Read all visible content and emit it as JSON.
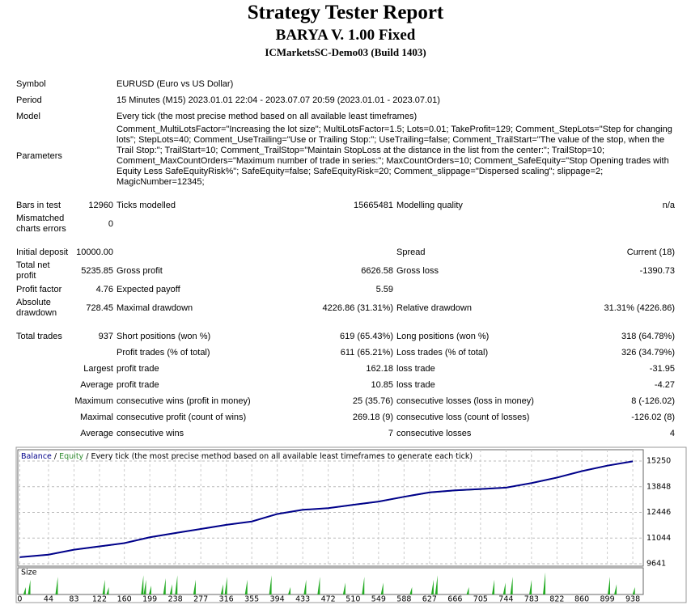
{
  "header": {
    "title": "Strategy Tester Report",
    "subtitle": "BARYA V. 1.00 Fixed",
    "server": "ICMarketsSC-Demo03 (Build 1403)"
  },
  "report": {
    "sections": [
      [
        {
          "label": "Symbol",
          "text": "EURUSD (Euro vs US Dollar)"
        },
        {
          "label": "Period",
          "text": "15 Minutes (M15) 2023.01.01 22:04 - 2023.07.07 20:59 (2023.01.01 - 2023.07.01)"
        },
        {
          "label": "Model",
          "text": "Every tick (the most precise method based on all available least timeframes)"
        },
        {
          "label": "Parameters",
          "text": "Comment_MultiLotsFactor=\"Increasing the lot size\"; MultiLotsFactor=1.5; Lots=0.01; TakeProfit=129; Comment_StepLots=\"Step for changing lots\"; StepLots=40; Comment_UseTrailing=\"Use or Trailing Stop:\"; UseTrailing=false; Comment_TrailStart=\"The value of the stop, when the Trail Stop:\"; TrailStart=10; Comment_TrailStop=\"Maintain StopLoss at the distance in the list from the center:\"; TrailStop=10; Comment_MaxCountOrders=\"Maximum number of trade in series:\"; MaxCountOrders=10; Comment_SafeEquity=\"Stop Opening trades with Equity Less SafeEquityRisk%\"; SafeEquity=false; SafeEquityRisk=20; Comment_slippage=\"Dispersed scaling\"; slippage=2; MagicNumber=12345;"
        }
      ],
      [
        {
          "label": "Bars in test",
          "value": "12960",
          "label2": "Ticks modelled",
          "value2": "15665481",
          "label3": "Modelling quality",
          "value3": "n/a"
        },
        {
          "label": "Mismatched charts errors",
          "value": "0"
        }
      ],
      [
        {
          "label": "Initial deposit",
          "value": "10000.00",
          "label3": "Spread",
          "value3": "Current (18)"
        },
        {
          "label": "Total net profit",
          "value": "5235.85",
          "label2": "Gross profit",
          "value2": "6626.58",
          "label3": "Gross loss",
          "value3": "-1390.73"
        },
        {
          "label": "Profit factor",
          "value": "4.76",
          "label2": "Expected payoff",
          "value2": "5.59"
        },
        {
          "label": "Absolute drawdown",
          "value": "728.45",
          "label2": "Maximal drawdown",
          "value2": "4226.86 (31.31%)",
          "label3": "Relative drawdown",
          "value3": "31.31% (4226.86)"
        }
      ],
      [
        {
          "label": "Total trades",
          "value": "937",
          "label2": "Short positions (won %)",
          "value2": "619 (65.43%)",
          "label3": "Long positions (won %)",
          "value3": "318 (64.78%)"
        },
        {
          "label2": "Profit trades (% of total)",
          "value2": "611 (65.21%)",
          "label3": "Loss trades (% of total)",
          "value3": "326 (34.79%)"
        },
        {
          "value": "Largest",
          "label2": "profit trade",
          "value2": "162.18",
          "label3": "loss trade",
          "value3": "-31.95"
        },
        {
          "value": "Average",
          "label2": "profit trade",
          "value2": "10.85",
          "label3": "loss trade",
          "value3": "-4.27"
        },
        {
          "value": "Maximum",
          "label2": "consecutive wins (profit in money)",
          "value2": "25 (35.76)",
          "label3": "consecutive losses (loss in money)",
          "value3": "8 (-126.02)"
        },
        {
          "value": "Maximal",
          "label2": "consecutive profit (count of wins)",
          "value2": "269.18 (9)",
          "label3": "consecutive loss (count of losses)",
          "value3": "-126.02 (8)"
        },
        {
          "value": "Average",
          "label2": "consecutive wins",
          "value2": "7",
          "label3": "consecutive losses",
          "value3": "4"
        }
      ]
    ]
  },
  "chart_data": {
    "type": "line",
    "legend_separator": " / ",
    "legend_note": "Every tick (the most precise method based on all available least timeframes to generate each tick)",
    "x": [
      0,
      44,
      83,
      122,
      160,
      199,
      238,
      277,
      316,
      355,
      394,
      433,
      472,
      510,
      549,
      588,
      627,
      666,
      705,
      744,
      783,
      822,
      860,
      899,
      938
    ],
    "series": [
      {
        "name": "Balance",
        "color": "#00008b",
        "values": [
          10000,
          10140,
          10410,
          10590,
          10770,
          11090,
          11320,
          11540,
          11770,
          11950,
          12360,
          12590,
          12680,
          12860,
          13040,
          13300,
          13540,
          13650,
          13720,
          13800,
          14050,
          14350,
          14700,
          15000,
          15236
        ]
      },
      {
        "name": "Equity",
        "color": "#2e8b2e",
        "values": [
          9990,
          10120,
          10400,
          10570,
          10760,
          11070,
          11300,
          11530,
          11750,
          11940,
          12340,
          12570,
          12670,
          12840,
          13020,
          13280,
          13520,
          13630,
          13700,
          13790,
          14030,
          14330,
          14690,
          14980,
          15236
        ]
      }
    ],
    "xlim": [
      -3,
      954
    ],
    "xticks": [
      0,
      44,
      83,
      122,
      160,
      199,
      238,
      277,
      316,
      355,
      394,
      433,
      472,
      510,
      549,
      588,
      627,
      666,
      705,
      744,
      783,
      822,
      860,
      899,
      938
    ],
    "ylim": [
      9510,
      15870
    ],
    "yticks": [
      9641,
      11044,
      12446,
      13848,
      15250
    ],
    "grid": true,
    "size": {
      "label": "Size",
      "color": "#22aa22",
      "ylim": [
        0,
        3.4
      ],
      "x": [
        8,
        15,
        57,
        129,
        135,
        188,
        192,
        200,
        222,
        232,
        240,
        268,
        310,
        316,
        347,
        384,
        413,
        437,
        458,
        497,
        526,
        555,
        599,
        632,
        638,
        686,
        725,
        742,
        753,
        782,
        803,
        902,
        912,
        940
      ],
      "values": [
        1,
        2,
        2.4,
        2,
        1,
        2.6,
        2,
        1.2,
        2.2,
        1.4,
        2.6,
        2,
        1.4,
        2.4,
        2,
        2.6,
        1,
        2,
        2.4,
        1.6,
        2.4,
        1.6,
        1,
        2,
        2.6,
        1,
        2,
        1.6,
        2.4,
        2,
        3,
        2.4,
        1.4,
        1
      ]
    }
  }
}
